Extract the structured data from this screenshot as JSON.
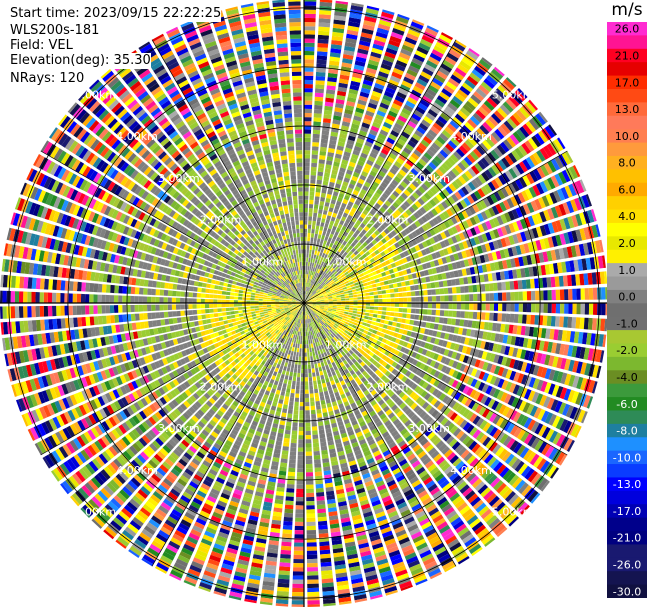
{
  "header": {
    "start_time": "Start time: 2023/09/15 22:22:25",
    "instrument": "WLS200s-181",
    "field": "Field: VEL",
    "elevation": "Elevation(deg): 35.30",
    "nrays": "NRays: 120"
  },
  "colorbar": {
    "units": "m/s",
    "bins": [
      {
        "label": "26.0",
        "color": "#ff2bd1"
      },
      {
        "label": "",
        "color": "#ff1493"
      },
      {
        "label": "21.0",
        "color": "#ff0022"
      },
      {
        "label": "",
        "color": "#e60000"
      },
      {
        "label": "17.0",
        "color": "#ff2d00"
      },
      {
        "label": "",
        "color": "#ff4a14"
      },
      {
        "label": "13.0",
        "color": "#ff6a3a"
      },
      {
        "label": "",
        "color": "#ff7a5a"
      },
      {
        "label": "10.0",
        "color": "#ff7f50"
      },
      {
        "label": "",
        "color": "#ff9a3c"
      },
      {
        "label": "8.0",
        "color": "#ffb020"
      },
      {
        "label": "",
        "color": "#ffc000"
      },
      {
        "label": "6.0",
        "color": "#ffaa00"
      },
      {
        "label": "",
        "color": "#ffd000"
      },
      {
        "label": "4.0",
        "color": "#ffe000"
      },
      {
        "label": "",
        "color": "#ffff00"
      },
      {
        "label": "2.0",
        "color": "#e8e800"
      },
      {
        "label": "",
        "color": "#fff000"
      },
      {
        "label": "1.0",
        "color": "#aaaaaa"
      },
      {
        "label": "",
        "color": "#9a9a9a"
      },
      {
        "label": "0.0",
        "color": "#808080"
      },
      {
        "label": "",
        "color": "#6f6f6f"
      },
      {
        "label": "-1.0",
        "color": "#707070"
      },
      {
        "label": "",
        "color": "#a8c832"
      },
      {
        "label": "-2.0",
        "color": "#9acd32"
      },
      {
        "label": "",
        "color": "#7cb82f"
      },
      {
        "label": "-4.0",
        "color": "#6b8e23"
      },
      {
        "label": "",
        "color": "#3c9a3c"
      },
      {
        "label": "-6.0",
        "color": "#228b22"
      },
      {
        "label": "",
        "color": "#2e8b57"
      },
      {
        "label": "-8.0",
        "color": "#1e7fa0"
      },
      {
        "label": "",
        "color": "#1e90ff"
      },
      {
        "label": "-10.0",
        "color": "#1a66ff"
      },
      {
        "label": "",
        "color": "#0a3cff"
      },
      {
        "label": "-13.0",
        "color": "#0000ff"
      },
      {
        "label": "",
        "color": "#0000dd"
      },
      {
        "label": "-17.0",
        "color": "#0000b4"
      },
      {
        "label": "",
        "color": "#00008b"
      },
      {
        "label": "-21.0",
        "color": "#000080"
      },
      {
        "label": "",
        "color": "#191970"
      },
      {
        "label": "-26.0",
        "color": "#191970"
      },
      {
        "label": "",
        "color": "#141450"
      },
      {
        "label": "-30.0",
        "color": "#101040"
      }
    ]
  },
  "chart_data": {
    "type": "heatmap",
    "projection": "polar-ppi",
    "nrays": 120,
    "range_ring_labels": [
      "1.00km",
      "2.00km",
      "3.00km",
      "4.00km",
      "5.00km"
    ],
    "range_rings_km": [
      1,
      2,
      3,
      4,
      5
    ],
    "max_range_km": 5.15,
    "azimuth_spokes_deg": [
      0,
      30,
      60,
      90,
      120,
      150,
      180,
      210,
      240,
      270,
      300,
      330
    ],
    "units": "m/s",
    "value_range": [
      -30.0,
      26.0
    ]
  }
}
